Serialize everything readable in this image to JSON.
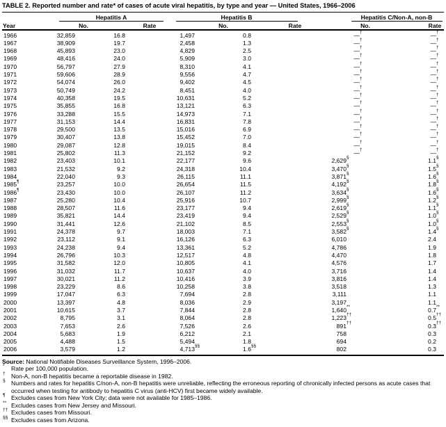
{
  "title": "TABLE 2. Reported number and rate* of cases of acute viral hepatitis, by type and year — United States, 1966–2006",
  "table": {
    "year_header": "Year",
    "groups": [
      {
        "label": "Hepatitis A"
      },
      {
        "label": "Hepatitis B"
      },
      {
        "label": "Hepatitis C/Non-A, non-B"
      }
    ],
    "subheaders": [
      "No.",
      "Rate",
      "No.",
      "Rate",
      "No.",
      "Rate"
    ],
    "rows": [
      [
        "1966",
        "32,859",
        "16.8",
        "1,497",
        "0.8",
        "—†",
        "—†"
      ],
      [
        "1967",
        "38,909",
        "19.7",
        "2,458",
        "1.3",
        "—†",
        "—†"
      ],
      [
        "1968",
        "45,893",
        "23.0",
        "4,829",
        "2.5",
        "—†",
        "—†"
      ],
      [
        "1969",
        "48,416",
        "24.0",
        "5,909",
        "3.0",
        "—†",
        "—†"
      ],
      [
        "1970",
        "56,797",
        "27.9",
        "8,310",
        "4.1",
        "—†",
        "—†"
      ],
      [
        "1971",
        "59,606",
        "28.9",
        "9,556",
        "4.7",
        "—†",
        "—†"
      ],
      [
        "1972",
        "54,074",
        "26.0",
        "9,402",
        "4.5",
        "—†",
        "—†"
      ],
      [
        "1973",
        "50,749",
        "24.2",
        "8,451",
        "4.0",
        "—†",
        "—†"
      ],
      [
        "1974",
        "40,358",
        "19.5",
        "10,631",
        "5.2",
        "—†",
        "—†"
      ],
      [
        "1975",
        "35,855",
        "16.8",
        "13,121",
        "6.3",
        "—†",
        "—†"
      ],
      [
        "1976",
        "33,288",
        "15.5",
        "14,973",
        "7.1",
        "—†",
        "—†"
      ],
      [
        "1977",
        "31,153",
        "14.4",
        "16,831",
        "7.8",
        "—†",
        "—†"
      ],
      [
        "1978",
        "29,500",
        "13.5",
        "15,016",
        "6.9",
        "—†",
        "—†"
      ],
      [
        "1979",
        "30,407",
        "13.8",
        "15,452",
        "7.0",
        "—†",
        "—†"
      ],
      [
        "1980",
        "29,087",
        "12.8",
        "19,015",
        "8.4",
        "—†",
        "—†"
      ],
      [
        "1981",
        "25,802",
        "11.3",
        "21,152",
        "9.2",
        "—†",
        "—†"
      ],
      [
        "1982",
        "23,403",
        "10.1",
        "22,177",
        "9.6",
        "2,629§",
        "1.1§"
      ],
      [
        "1983",
        "21,532",
        "9.2",
        "24,318",
        "10.4",
        "3,470§",
        "1.5§"
      ],
      [
        "1984",
        "22,040",
        "9.3",
        "26,115",
        "11.1",
        "3,871§",
        "1.6§"
      ],
      [
        "1985¶",
        "23,257",
        "10.0",
        "26,654",
        "11.5",
        "4,192§",
        "1.8§"
      ],
      [
        "1986¶",
        "23,430",
        "10.0",
        "26,107",
        "11.2",
        "3,634§",
        "1.6§"
      ],
      [
        "1987",
        "25,280",
        "10.4",
        "25,916",
        "10.7",
        "2,999§",
        "1.2§"
      ],
      [
        "1988",
        "28,507",
        "11.6",
        "23,177",
        "9.4",
        "2,619§",
        "1.1§"
      ],
      [
        "1989",
        "35,821",
        "14.4",
        "23,419",
        "9.4",
        "2,529§",
        "1.0§"
      ],
      [
        "1990",
        "31,441",
        "12.6",
        "21,102",
        "8.5",
        "2,553§",
        "1.0§"
      ],
      [
        "1991",
        "24,378",
        "9.7",
        "18,003",
        "7.1",
        "3,582§",
        "1.4§"
      ],
      [
        "1992",
        "23,112",
        "9.1",
        "16,126",
        "6.3",
        "6,010",
        "2.4"
      ],
      [
        "1993",
        "24,238",
        "9.4",
        "13,361",
        "5.2",
        "4,786",
        "1.9"
      ],
      [
        "1994",
        "26,796",
        "10.3",
        "12,517",
        "4.8",
        "4,470",
        "1.8"
      ],
      [
        "1995",
        "31,582",
        "12.0",
        "10,805",
        "4.1",
        "4,576",
        "1.7"
      ],
      [
        "1996",
        "31,032",
        "11.7",
        "10,637",
        "4.0",
        "3,716",
        "1.4"
      ],
      [
        "1997",
        "30,021",
        "11.2",
        "10,416",
        "3.9",
        "3,816",
        "1.4"
      ],
      [
        "1998",
        "23,229",
        "8.6",
        "10,258",
        "3.8",
        "3,518",
        "1.3"
      ],
      [
        "1999",
        "17,047",
        "6.3",
        "7,694",
        "2.8",
        "3,111",
        "1.1"
      ],
      [
        "2000",
        "13,397",
        "4.8",
        "8,036",
        "2.9",
        "3,197",
        "1.1"
      ],
      [
        "2001",
        "10,615",
        "3.7",
        "7,844",
        "2.8",
        "1,640**",
        "0.7**"
      ],
      [
        "2002",
        "8,795",
        "3.1",
        "8,064",
        "2.8",
        "1,223††",
        "0.5††"
      ],
      [
        "2003",
        "7,653",
        "2.6",
        "7,526",
        "2.6",
        "891††",
        "0.3††"
      ],
      [
        "2004",
        "5,683",
        "1.9",
        "6,212",
        "2.1",
        "758",
        "0.3"
      ],
      [
        "2005",
        "4,488",
        "1.5",
        "5,494",
        "1.8",
        "694",
        "0.2"
      ],
      [
        "2006",
        "3,579",
        "1.2",
        "4,713§§",
        "1.6§§",
        "802",
        "0.3"
      ]
    ]
  },
  "footnotes": {
    "source_label": "Source:",
    "source_text": "National Notifiable Diseases Surveillance System, 1996–2006.",
    "notes": [
      {
        "marker": "*",
        "text": "Rate per 100,000 population."
      },
      {
        "marker": "†",
        "text": "Non-A, non-B hepatitis became a reportable disease in 1982."
      },
      {
        "marker": "§",
        "text": "Numbers and rates for hepatitis C/non-A, non-B hepatitis were unreliable, reflecting the erroneous reporting of chronically infected persons as acute cases that occurred when testing for antibody to hepatitis C virus (anti-HCV) first became widely available."
      },
      {
        "marker": "¶",
        "text": "Excludes cases from New York City; data were not available for 1985–1986."
      },
      {
        "marker": "**",
        "text": "Excludes cases from New Jersey and Missouri."
      },
      {
        "marker": "††",
        "text": "Excludes cases from Missouri."
      },
      {
        "marker": "§§",
        "text": "Excludes cases from Arizona."
      }
    ]
  }
}
